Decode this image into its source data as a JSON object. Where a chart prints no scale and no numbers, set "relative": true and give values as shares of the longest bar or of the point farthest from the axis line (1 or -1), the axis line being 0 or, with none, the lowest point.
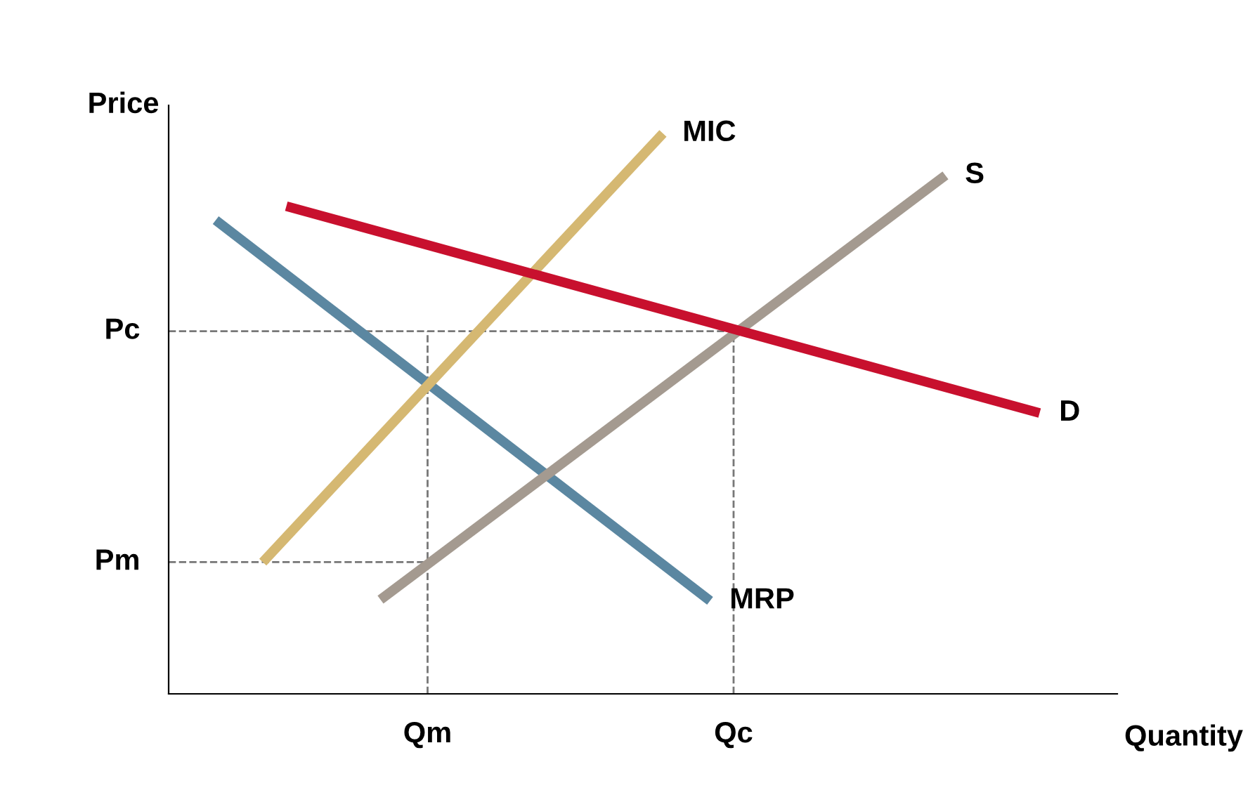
{
  "chart_data": {
    "type": "line",
    "relative": true,
    "xlabel": "Quantity",
    "ylabel": "Price",
    "categories": [
      null,
      null,
      null,
      null,
      null,
      null,
      null,
      null,
      null,
      null,
      null,
      "Qm",
      null,
      null,
      null,
      null,
      null,
      null,
      null,
      null,
      null,
      null,
      null,
      null,
      "Qc",
      null,
      null,
      null,
      null,
      null,
      null,
      null,
      null,
      null,
      null,
      null,
      null,
      null,
      null,
      null,
      null
    ],
    "ref_lines": [
      {
        "axis": "y",
        "value": 0.235,
        "label": "Pm",
        "color": "#777777",
        "line_style": "dashed"
      },
      {
        "axis": "y",
        "value": 0.647,
        "label": "Pc",
        "color": "#777777",
        "line_style": "dashed"
      },
      {
        "axis": "x",
        "value": "Qm",
        "color": "#777777",
        "line_style": "dashed"
      },
      {
        "axis": "x",
        "value": "Qc",
        "color": "#777777",
        "line_style": "dashed"
      }
    ],
    "series": [
      {
        "name": "MRP",
        "color": "#5b87a1",
        "values": [
          null,
          null,
          0.845,
          null,
          null,
          null,
          null,
          null,
          null,
          null,
          null,
          null,
          null,
          null,
          null,
          null,
          null,
          null,
          null,
          null,
          null,
          null,
          null,
          0.166,
          null,
          null,
          null,
          null,
          null,
          null,
          null,
          null,
          null,
          null,
          null,
          null,
          null,
          null,
          null,
          null,
          null
        ]
      },
      {
        "name": "MIC",
        "color": "#d5b872",
        "values": [
          null,
          null,
          null,
          null,
          0.235,
          null,
          null,
          null,
          null,
          null,
          null,
          null,
          null,
          null,
          null,
          null,
          null,
          null,
          null,
          null,
          null,
          1,
          null,
          null,
          null,
          null,
          null,
          null,
          null,
          null,
          null,
          null,
          null,
          null,
          null,
          null,
          null,
          null,
          null,
          null,
          null
        ]
      },
      {
        "name": "S",
        "color": "#a49a90",
        "values": [
          null,
          null,
          null,
          null,
          null,
          null,
          null,
          null,
          null,
          0.168,
          null,
          null,
          null,
          null,
          null,
          null,
          null,
          null,
          null,
          null,
          null,
          null,
          null,
          null,
          null,
          null,
          null,
          null,
          null,
          null,
          null,
          null,
          null,
          0.925,
          null,
          null,
          null,
          null,
          null,
          null,
          null
        ]
      },
      {
        "name": "D",
        "color": "#c8102e",
        "values": [
          null,
          null,
          null,
          null,
          null,
          0.87,
          null,
          null,
          null,
          null,
          null,
          null,
          null,
          null,
          null,
          null,
          null,
          null,
          null,
          null,
          null,
          null,
          null,
          null,
          null,
          null,
          null,
          null,
          null,
          null,
          null,
          null,
          null,
          null,
          null,
          null,
          null,
          0.501,
          null,
          null,
          null
        ]
      }
    ],
    "line_style": "solid",
    "marker": "none"
  }
}
